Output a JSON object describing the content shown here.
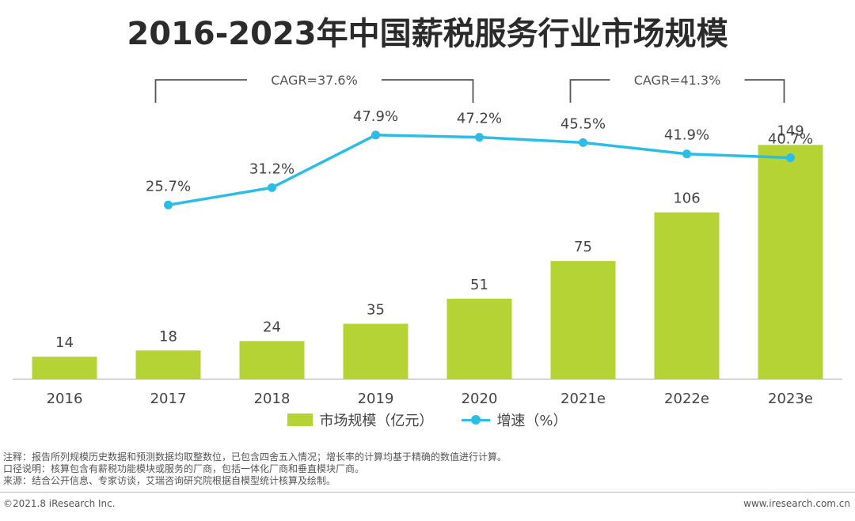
{
  "chart_data": {
    "type": "bar",
    "title": "2016-2023年中国薪税服务行业市场规模",
    "categories": [
      "2016",
      "2017",
      "2018",
      "2019",
      "2020",
      "2021e",
      "2022e",
      "2023e"
    ],
    "series": [
      {
        "name": "市场规模（亿元）",
        "type": "bar",
        "values": [
          14,
          18,
          24,
          35,
          51,
          75,
          106,
          149
        ]
      },
      {
        "name": "增速（%）",
        "type": "line",
        "values": [
          null,
          25.7,
          31.2,
          47.9,
          47.2,
          45.5,
          41.9,
          40.7
        ],
        "labels": [
          "",
          "25.7%",
          "31.2%",
          "47.9%",
          "47.2%",
          "45.5%",
          "41.9%",
          "40.7%"
        ]
      }
    ],
    "cagr": [
      {
        "label": "CAGR=37.6%",
        "from": "2017",
        "to": "2020"
      },
      {
        "label": "CAGR=41.3%",
        "from": "2021e",
        "to": "2023e"
      }
    ],
    "ylim": [
      0,
      160
    ],
    "rate_ylim": [
      0,
      100
    ],
    "legend_position": "bottom"
  },
  "colors": {
    "bar": "#b5d334",
    "line": "#2bbde6",
    "axis": "#aaaaaa"
  },
  "legend": {
    "bar_label": "市场规模（亿元）",
    "line_label": "增速（%）"
  },
  "notes": [
    "注释：报告所列规模历史数据和预测数据均取整数位，已包含四舍五入情况；增长率的计算均基于精确的数值进行计算。",
    "口径说明：核算包含有薪税功能模块或服务的厂商，包括一体化厂商和垂直模块厂商。",
    "来源：结合公开信息、专家访谈，艾瑞咨询研究院根据自模型统计核算及绘制。"
  ],
  "footer": {
    "copyright": "©2021.8 iResearch Inc.",
    "website": "www.iresearch.com.cn"
  }
}
